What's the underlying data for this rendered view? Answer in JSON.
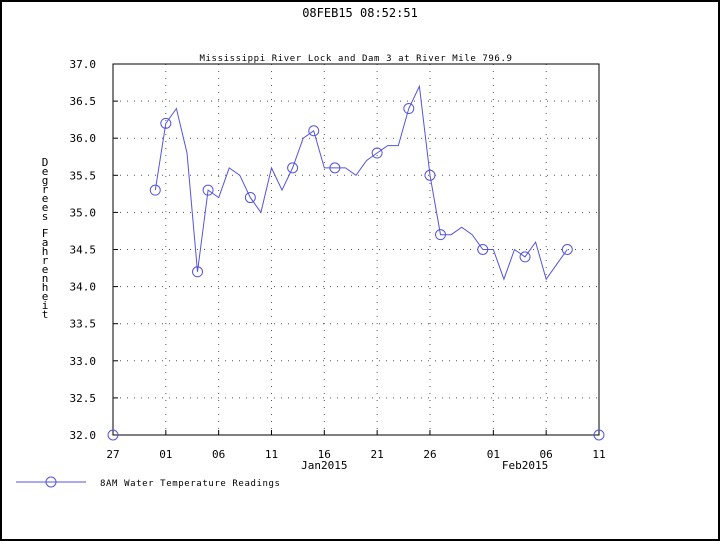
{
  "header": {
    "timestamp": "08FEB15  08:52:51"
  },
  "colors": {
    "series": "#5555dd",
    "grid": "#555555",
    "frame": "#000000"
  },
  "chart_data": {
    "type": "line",
    "title": "Mississippi River Lock and Dam 3 at River Mile 796.9",
    "ylabel": "Degrees Fahrenheit",
    "ylim": [
      32.0,
      37.0
    ],
    "xlim": [
      "2014-12-27",
      "2015-02-11"
    ],
    "y_ticks": [
      "32.0",
      "32.5",
      "33.0",
      "33.5",
      "34.0",
      "34.5",
      "35.0",
      "35.5",
      "36.0",
      "36.5",
      "37.0"
    ],
    "x_ticks": [
      {
        "date": "2014-12-27",
        "label": "27"
      },
      {
        "date": "2015-01-01",
        "label": "01"
      },
      {
        "date": "2015-01-06",
        "label": "06"
      },
      {
        "date": "2015-01-11",
        "label": "11"
      },
      {
        "date": "2015-01-16",
        "label": "16"
      },
      {
        "date": "2015-01-21",
        "label": "21"
      },
      {
        "date": "2015-01-26",
        "label": "26"
      },
      {
        "date": "2015-02-01",
        "label": "01"
      },
      {
        "date": "2015-02-06",
        "label": "06"
      },
      {
        "date": "2015-02-11",
        "label": "11"
      }
    ],
    "month_labels": [
      {
        "date": "2015-01-16",
        "label": "Jan2015"
      },
      {
        "date": "2015-02-04",
        "label": "Feb2015"
      }
    ],
    "grid": true,
    "legend": "bottom-left",
    "series": [
      {
        "name": "8AM Water Temperature Readings",
        "points": [
          [
            "2014-12-31",
            35.3
          ],
          [
            "2015-01-01",
            36.2
          ],
          [
            "2015-01-02",
            36.4
          ],
          [
            "2015-01-03",
            35.8
          ],
          [
            "2015-01-04",
            34.2
          ],
          [
            "2015-01-05",
            35.3
          ],
          [
            "2015-01-06",
            35.2
          ],
          [
            "2015-01-07",
            35.6
          ],
          [
            "2015-01-08",
            35.5
          ],
          [
            "2015-01-09",
            35.2
          ],
          [
            "2015-01-10",
            35.0
          ],
          [
            "2015-01-11",
            35.6
          ],
          [
            "2015-01-12",
            35.3
          ],
          [
            "2015-01-13",
            35.6
          ],
          [
            "2015-01-14",
            36.0
          ],
          [
            "2015-01-15",
            36.1
          ],
          [
            "2015-01-16",
            35.6
          ],
          [
            "2015-01-17",
            35.6
          ],
          [
            "2015-01-18",
            35.6
          ],
          [
            "2015-01-19",
            35.5
          ],
          [
            "2015-01-20",
            35.7
          ],
          [
            "2015-01-21",
            35.8
          ],
          [
            "2015-01-22",
            35.9
          ],
          [
            "2015-01-23",
            35.9
          ],
          [
            "2015-01-24",
            36.4
          ],
          [
            "2015-01-25",
            36.7
          ],
          [
            "2015-01-26",
            35.5
          ],
          [
            "2015-01-27",
            34.7
          ],
          [
            "2015-01-28",
            34.7
          ],
          [
            "2015-01-29",
            34.8
          ],
          [
            "2015-01-30",
            34.7
          ],
          [
            "2015-01-31",
            34.5
          ],
          [
            "2015-02-01",
            34.5
          ],
          [
            "2015-02-02",
            34.1
          ],
          [
            "2015-02-03",
            34.5
          ],
          [
            "2015-02-04",
            34.4
          ],
          [
            "2015-02-05",
            34.6
          ],
          [
            "2015-02-06",
            34.1
          ],
          [
            "2015-02-07",
            34.3
          ],
          [
            "2015-02-08",
            34.5
          ]
        ],
        "markers": [
          [
            "2014-12-27",
            32.0
          ],
          [
            "2014-12-31",
            35.3
          ],
          [
            "2015-01-01",
            36.2
          ],
          [
            "2015-01-04",
            34.2
          ],
          [
            "2015-01-05",
            35.3
          ],
          [
            "2015-01-09",
            35.2
          ],
          [
            "2015-01-13",
            35.6
          ],
          [
            "2015-01-15",
            36.1
          ],
          [
            "2015-01-17",
            35.6
          ],
          [
            "2015-01-21",
            35.8
          ],
          [
            "2015-01-24",
            36.4
          ],
          [
            "2015-01-26",
            35.5
          ],
          [
            "2015-01-27",
            34.7
          ],
          [
            "2015-01-31",
            34.5
          ],
          [
            "2015-02-04",
            34.4
          ],
          [
            "2015-02-08",
            34.5
          ],
          [
            "2015-02-11",
            32.0
          ]
        ]
      }
    ]
  }
}
